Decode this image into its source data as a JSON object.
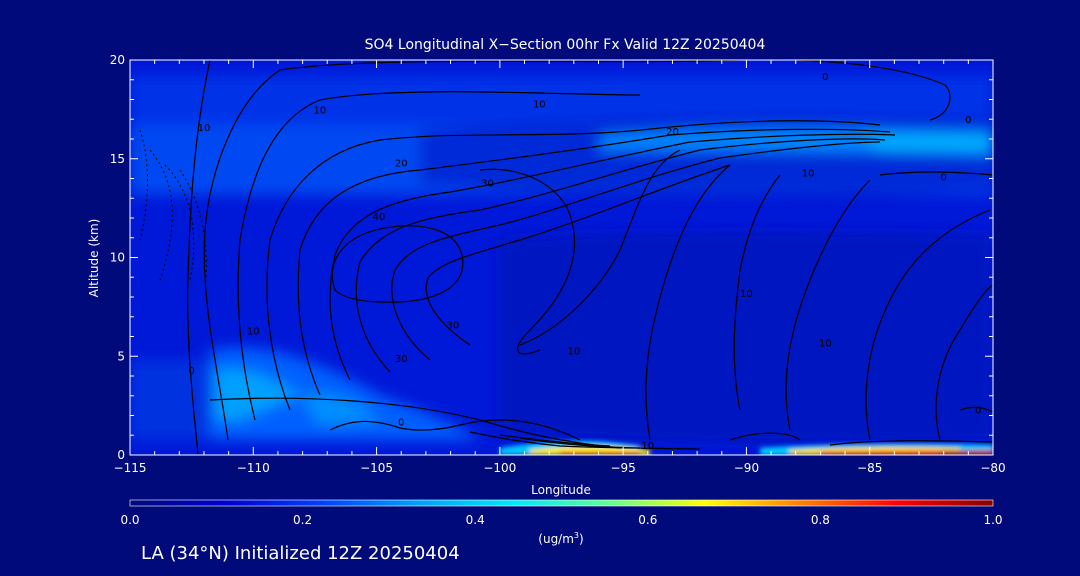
{
  "footer": "LA (34°N) Initialized 12Z 20250404",
  "chart_data": {
    "type": "heatmap",
    "title": "SO4 Longitudinal X−Section 00hr  Fx Valid 12Z 20250404",
    "xlabel": "Longitude",
    "ylabel": "Altitude (km)",
    "xlim": [
      -115,
      -80
    ],
    "ylim": [
      0,
      20
    ],
    "xticks": [
      -115,
      -110,
      -105,
      -100,
      -95,
      -90,
      -85,
      -80
    ],
    "xtick_labels": [
      "−115",
      "−110",
      "−105",
      "−100",
      "−95",
      "−90",
      "−85",
      "−80"
    ],
    "yticks": [
      0,
      5,
      10,
      15,
      20
    ],
    "ytick_labels": [
      "0",
      "5",
      "10",
      "15",
      "20"
    ],
    "colorbar": {
      "range": [
        0.0,
        1.0
      ],
      "ticks": [
        "0.0",
        "0.2",
        "0.4",
        "0.6",
        "0.8",
        "1.0"
      ],
      "unit_label": "(ug/m",
      "unit_sup": "3",
      "unit_tail": ")",
      "colors": [
        "#000a7a",
        "#0000d0",
        "#0040ff",
        "#00a0ff",
        "#00e8ff",
        "#60ff90",
        "#ffff00",
        "#ff8000",
        "#ff0000",
        "#8a0000"
      ]
    },
    "contour_labels": [
      {
        "text": "10",
        "x": -112.0,
        "y": 16.4
      },
      {
        "text": "10",
        "x": -107.3,
        "y": 17.3
      },
      {
        "text": "10",
        "x": -98.4,
        "y": 17.6
      },
      {
        "text": "0",
        "x": -86.8,
        "y": 19.0
      },
      {
        "text": "20",
        "x": -93.0,
        "y": 16.2
      },
      {
        "text": "20",
        "x": -104.0,
        "y": 14.6
      },
      {
        "text": "30",
        "x": -100.5,
        "y": 13.6
      },
      {
        "text": "40",
        "x": -104.9,
        "y": 11.9
      },
      {
        "text": "10",
        "x": -87.5,
        "y": 14.1
      },
      {
        "text": "0",
        "x": -82.0,
        "y": 13.9
      },
      {
        "text": "0",
        "x": -81.0,
        "y": 16.8
      },
      {
        "text": "30",
        "x": -101.9,
        "y": 6.4
      },
      {
        "text": "10",
        "x": -90.0,
        "y": 8.0
      },
      {
        "text": "10",
        "x": -97.0,
        "y": 5.1
      },
      {
        "text": "10",
        "x": -86.8,
        "y": 5.5
      },
      {
        "text": "30",
        "x": -104.0,
        "y": 4.7
      },
      {
        "text": "10",
        "x": -110.0,
        "y": 6.1
      },
      {
        "text": "0",
        "x": -112.5,
        "y": 4.1
      },
      {
        "text": "0",
        "x": -104.0,
        "y": 1.5
      },
      {
        "text": "0",
        "x": -80.6,
        "y": 2.1
      },
      {
        "text": "10",
        "x": -94.0,
        "y": 0.3
      }
    ]
  }
}
